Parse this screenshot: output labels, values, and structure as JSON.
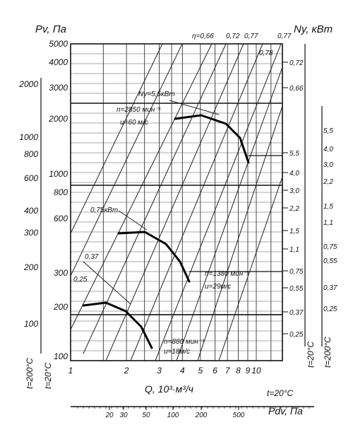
{
  "chart_data": {
    "type": "line",
    "title": "",
    "ylabel_left": "Pv, Па",
    "ylabel_right": "Ny, кВт",
    "xlabel": "Q, 10³·м³/ч",
    "xlabel2": "Pdv, Па",
    "temp_label": "t=20°C",
    "temp_label_side": "t=200°C",
    "x_scale": "log",
    "x_ticks": [
      "1",
      "2",
      "3",
      "4",
      "5",
      "6",
      "7",
      "8",
      "9",
      "10"
    ],
    "x2_ticks": [
      "20",
      "30",
      "50",
      "100",
      "200",
      "500"
    ],
    "y_scales": {
      "top_left": [
        "5000",
        "4000",
        "3000",
        "2000"
      ],
      "top_outer": [
        "2000",
        "1000",
        "800",
        "600"
      ],
      "mid_left": [
        "1000",
        "800",
        "600"
      ],
      "mid_outer": [
        "400",
        "300",
        "200"
      ],
      "low_left": [
        "300",
        "200",
        "100"
      ],
      "low_outer": [
        "100"
      ]
    },
    "right_power_ticks_inner": [
      "0,72",
      "0,66",
      "5,5",
      "4,0",
      "3,0",
      "2,2",
      "1,5",
      "1,1",
      "0,75",
      "0,55",
      "0,37",
      "0,25"
    ],
    "right_power_ticks_outer": [
      "5,5",
      "4,0",
      "3,0",
      "2,2",
      "1,5",
      "1,1",
      "0,75",
      "0,55",
      "0,37",
      "0,25"
    ],
    "efficiency_labels": [
      "η=0,66",
      "0,72",
      "0,77",
      "0,78",
      "0,77"
    ],
    "series": [
      {
        "name": "n=2850 мин⁻¹",
        "sub": "u=60 м/с",
        "power": "Ny=5,5кВт",
        "x": [
          4.1,
          5.0,
          6.0,
          7.0,
          8.0,
          9.0
        ],
        "y": [
          2000,
          2050,
          1950,
          1750,
          1450,
          1200
        ]
      },
      {
        "name": "n=1380 мин⁻¹",
        "sub": "u=29м/с",
        "power": "0,75кВт",
        "x": [
          2.0,
          2.5,
          3.0,
          3.5,
          4.0,
          4.5
        ],
        "y": [
          480,
          490,
          460,
          410,
          340,
          280
        ]
      },
      {
        "name": "n=880 мин⁻¹",
        "sub": "u=18м/с",
        "power": "0,37",
        "x": [
          1.2,
          1.5,
          2.0,
          2.3,
          2.7,
          3.0
        ],
        "y": [
          205,
          210,
          190,
          165,
          130,
          105
        ]
      }
    ]
  }
}
